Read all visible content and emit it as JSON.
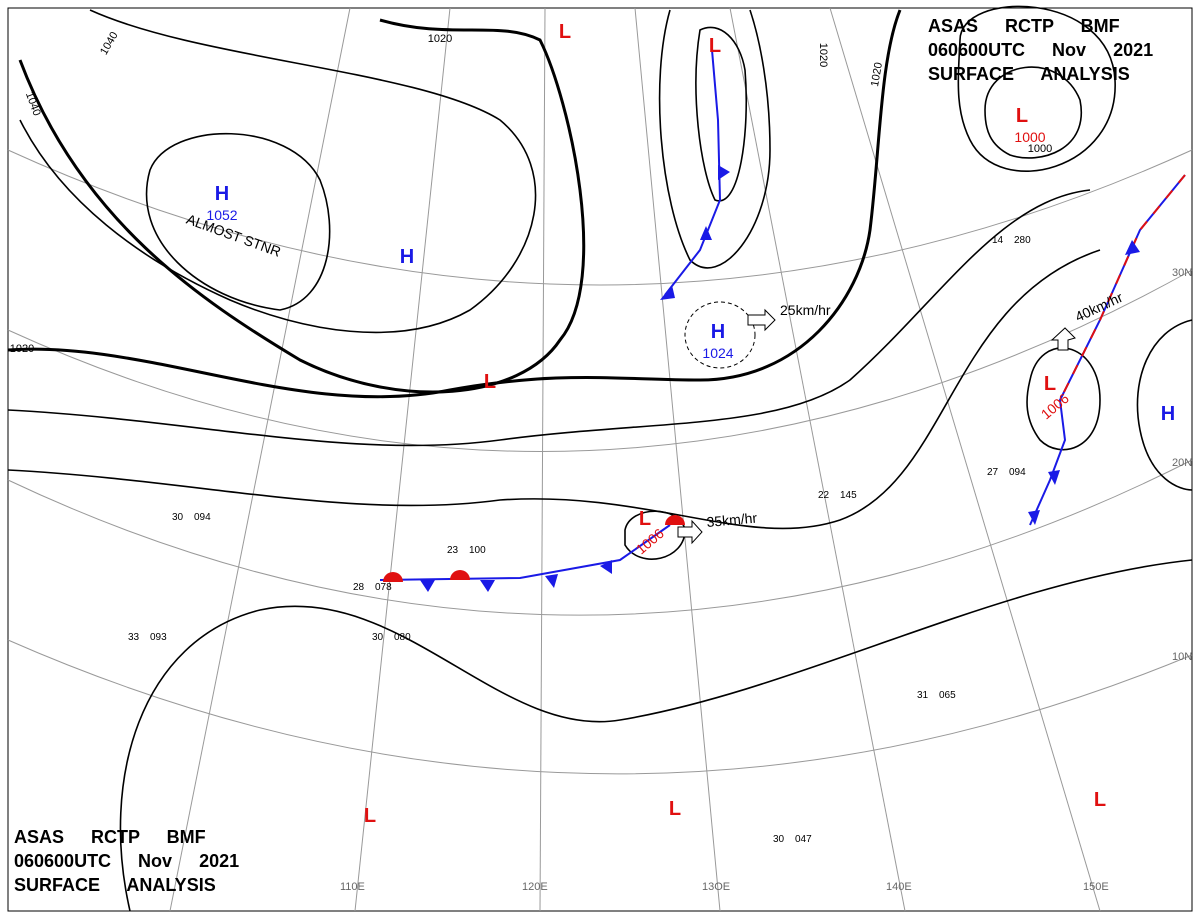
{
  "header": {
    "line1": "ASAS RCTP BMF",
    "line2": "060600UTC Nov 2021",
    "line3": "SURFACE ANALYSIS"
  },
  "footer": {
    "line1": "ASAS RCTP BMF",
    "line2": "060600UTC Nov 2021",
    "line3": "SURFACE ANALYSIS"
  },
  "isobar_labels": [
    "1040",
    "1040",
    "1020",
    "1020",
    "1020",
    "1020",
    "1000"
  ],
  "systems": [
    {
      "symbol": "H",
      "pressure": "1052",
      "note": "ALMOST STNR"
    },
    {
      "symbol": "H"
    },
    {
      "symbol": "H",
      "pressure": "1024"
    },
    {
      "symbol": "H"
    },
    {
      "symbol": "L",
      "pressure": "1000"
    },
    {
      "symbol": "L"
    },
    {
      "symbol": "L",
      "pressure": "1006"
    },
    {
      "symbol": "L",
      "pressure": "1006"
    },
    {
      "symbol": "L"
    },
    {
      "symbol": "L"
    },
    {
      "symbol": "L"
    },
    {
      "symbol": "L"
    },
    {
      "symbol": "L"
    }
  ],
  "motions": [
    "25km/hr",
    "40km/hr",
    "35km/hr"
  ],
  "grid_labels": {
    "lat": [
      "30N",
      "20N",
      "10N"
    ],
    "lon": [
      "110E",
      "120E",
      "13OE",
      "140E",
      "150E"
    ]
  },
  "stations": [
    {
      "temp": "30",
      "pressure": "094"
    },
    {
      "temp": "33",
      "pressure": "093"
    },
    {
      "temp": "31",
      "pressure": "065"
    },
    {
      "temp": "30",
      "pressure": "047"
    },
    {
      "temp": "27",
      "pressure": "094"
    },
    {
      "temp": "22",
      "pressure": "145"
    },
    {
      "temp": "23",
      "pressure": "100"
    },
    {
      "temp": "28",
      "pressure": "078"
    },
    {
      "temp": "30",
      "pressure": "080"
    },
    {
      "temp": "14",
      "pressure": "280"
    }
  ]
}
